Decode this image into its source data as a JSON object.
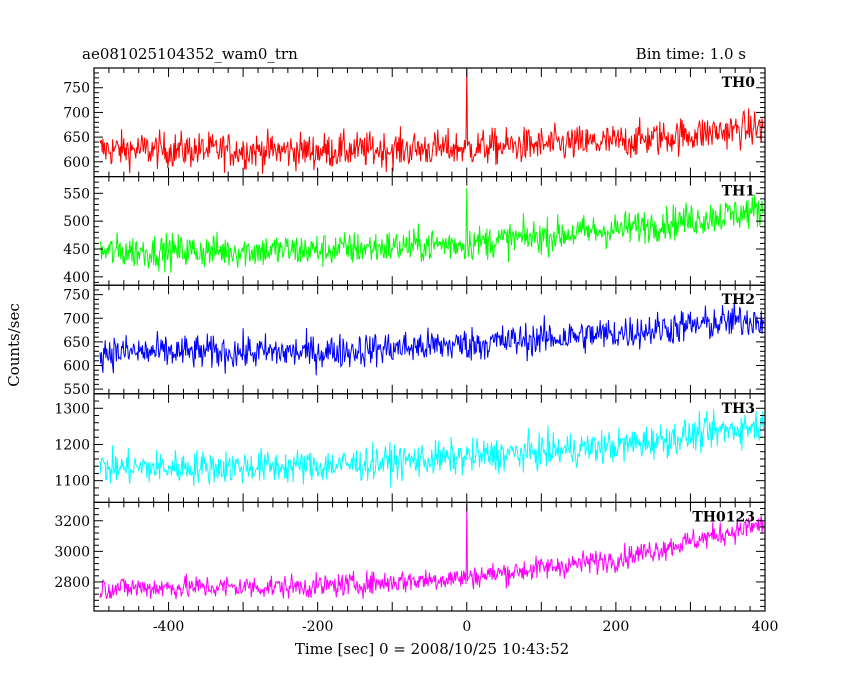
{
  "header": {
    "title": "ae081025104352_wam0_trn",
    "bin_time": "Bin time: 1.0 s"
  },
  "chart_data": {
    "type": "line",
    "xlabel": "Time [sec] 0 = 2008/10/25 10:43:52",
    "ylabel": "Counts/sec",
    "xlim": [
      -500,
      400
    ],
    "x_ticks": [
      -400,
      -200,
      0,
      200,
      400
    ],
    "panels": [
      {
        "name": "TH0",
        "color": "#ff0000",
        "ylim": [
          570,
          790
        ],
        "y_ticks": [
          600,
          650,
          700,
          750
        ],
        "trend": {
          "x": [
            -500,
            -200,
            0,
            200,
            400
          ],
          "y": [
            625,
            622,
            628,
            640,
            670
          ]
        },
        "noise_sd": 26,
        "spikes": [
          {
            "x": 0,
            "y": 788
          }
        ]
      },
      {
        "name": "TH1",
        "color": "#00ff00",
        "ylim": [
          385,
          580
        ],
        "y_ticks": [
          400,
          450,
          500,
          550
        ],
        "trend": {
          "x": [
            -500,
            -200,
            0,
            200,
            400
          ],
          "y": [
            445,
            448,
            460,
            485,
            520
          ]
        },
        "noise_sd": 22,
        "spikes": [
          {
            "x": 0,
            "y": 560
          }
        ]
      },
      {
        "name": "TH2",
        "color": "#0000ff",
        "ylim": [
          540,
          770
        ],
        "y_ticks": [
          550,
          600,
          650,
          700,
          750
        ],
        "trend": {
          "x": [
            -500,
            -200,
            0,
            200,
            400
          ],
          "y": [
            628,
            628,
            645,
            668,
            700
          ]
        },
        "noise_sd": 26,
        "spikes": []
      },
      {
        "name": "TH3",
        "color": "#00ffff",
        "ylim": [
          1040,
          1340
        ],
        "y_ticks": [
          1100,
          1200,
          1300
        ],
        "trend": {
          "x": [
            -500,
            -200,
            0,
            200,
            400
          ],
          "y": [
            1135,
            1140,
            1165,
            1195,
            1255
          ]
        },
        "noise_sd": 34,
        "spikes": []
      },
      {
        "name": "TH0123",
        "color": "#ff00ff",
        "ylim": [
          2610,
          3320
        ],
        "y_ticks": [
          2800,
          3000,
          3200
        ],
        "trend": {
          "x": [
            -500,
            -200,
            0,
            200,
            400
          ],
          "y": [
            2760,
            2770,
            2830,
            2950,
            3180
          ]
        },
        "noise_sd": 55,
        "spikes": [
          {
            "x": 0,
            "y": 3310
          }
        ]
      }
    ]
  }
}
